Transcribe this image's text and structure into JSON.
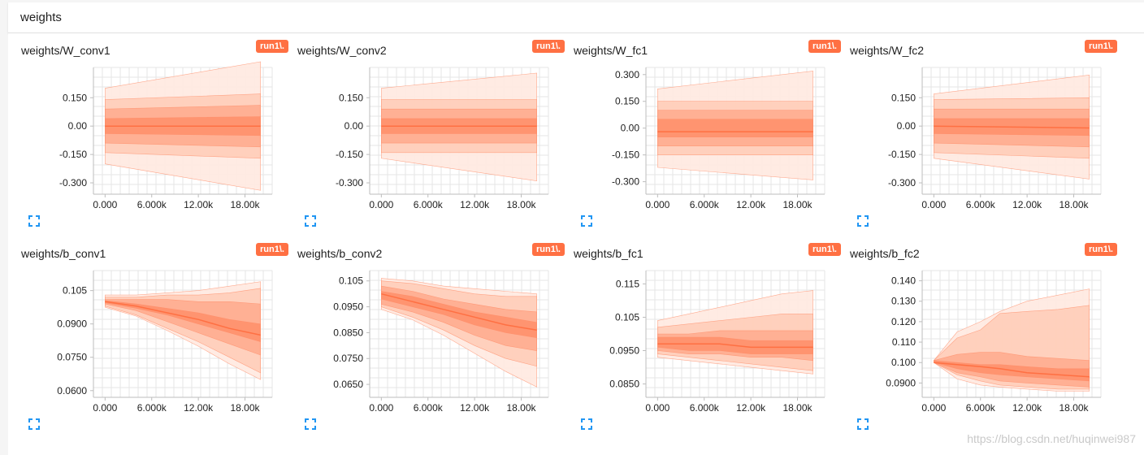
{
  "header": {
    "title": "weights"
  },
  "run_label": "run1\\.",
  "colors": {
    "accent": "#ff7043",
    "band_outer": "#ffe9e0",
    "band_2": "#ffcdb8",
    "band_3": "#ffac8f",
    "band_4": "#ff916c",
    "median": "#ff7043"
  },
  "icons": {
    "expand": "fullscreen-expand-icon"
  },
  "watermark": "https://blog.csdn.net/huqinwei987",
  "chart_data": [
    {
      "type": "area",
      "title": "weights/W_conv1",
      "x": [
        0,
        20000
      ],
      "xlim": [
        -1500,
        21500
      ],
      "x_ticks": [
        "0.000",
        "6.000k",
        "12.00k",
        "18.00k"
      ],
      "x_tick_values": [
        0,
        6000,
        12000,
        18000
      ],
      "ylim": [
        -0.36,
        0.31
      ],
      "y_ticks": [
        "0.150",
        "0.00",
        "-0.150",
        "-0.300"
      ],
      "y_tick_values": [
        0.15,
        0,
        -0.15,
        -0.3
      ],
      "bands": [
        {
          "lo": [
            -0.2,
            -0.34
          ],
          "hi": [
            0.2,
            0.34
          ]
        },
        {
          "lo": [
            -0.14,
            -0.17
          ],
          "hi": [
            0.14,
            0.17
          ]
        },
        {
          "lo": [
            -0.09,
            -0.11
          ],
          "hi": [
            0.09,
            0.11
          ]
        },
        {
          "lo": [
            -0.04,
            -0.05
          ],
          "hi": [
            0.04,
            0.05
          ]
        }
      ],
      "median": [
        0,
        0
      ]
    },
    {
      "type": "area",
      "title": "weights/W_conv2",
      "x": [
        0,
        20000
      ],
      "xlim": [
        -1500,
        21500
      ],
      "x_ticks": [
        "0.000",
        "6.000k",
        "12.00k",
        "18.00k"
      ],
      "x_tick_values": [
        0,
        6000,
        12000,
        18000
      ],
      "ylim": [
        -0.36,
        0.31
      ],
      "y_ticks": [
        "0.150",
        "0.00",
        "-0.150",
        "-0.300"
      ],
      "y_tick_values": [
        0.15,
        0,
        -0.15,
        -0.3
      ],
      "bands": [
        {
          "lo": [
            -0.17,
            -0.29
          ],
          "hi": [
            0.2,
            0.28
          ]
        },
        {
          "lo": [
            -0.14,
            -0.14
          ],
          "hi": [
            0.14,
            0.14
          ]
        },
        {
          "lo": [
            -0.09,
            -0.09
          ],
          "hi": [
            0.09,
            0.09
          ]
        },
        {
          "lo": [
            -0.04,
            -0.04
          ],
          "hi": [
            0.04,
            0.04
          ]
        }
      ],
      "median": [
        0,
        0
      ]
    },
    {
      "type": "area",
      "title": "weights/W_fc1",
      "x": [
        0,
        20000
      ],
      "xlim": [
        -1500,
        21500
      ],
      "x_ticks": [
        "0.000",
        "6.000k",
        "12.00k",
        "18.00k"
      ],
      "x_tick_values": [
        0,
        6000,
        12000,
        18000
      ],
      "ylim": [
        -0.37,
        0.34
      ],
      "y_ticks": [
        "0.300",
        "0.150",
        "0.00",
        "-0.150",
        "-0.300"
      ],
      "y_tick_values": [
        0.3,
        0.15,
        0,
        -0.15,
        -0.3
      ],
      "bands": [
        {
          "lo": [
            -0.22,
            -0.29
          ],
          "hi": [
            0.22,
            0.32
          ]
        },
        {
          "lo": [
            -0.15,
            -0.15
          ],
          "hi": [
            0.15,
            0.15
          ]
        },
        {
          "lo": [
            -0.1,
            -0.1
          ],
          "hi": [
            0.1,
            0.1
          ]
        },
        {
          "lo": [
            -0.05,
            -0.05
          ],
          "hi": [
            0.05,
            0.05
          ]
        }
      ],
      "median": [
        -0.02,
        -0.02
      ]
    },
    {
      "type": "area",
      "title": "weights/W_fc2",
      "x": [
        0,
        20000
      ],
      "xlim": [
        -1500,
        21500
      ],
      "x_ticks": [
        "0.000",
        "6.000k",
        "12.00k",
        "18.00k"
      ],
      "x_tick_values": [
        0,
        6000,
        12000,
        18000
      ],
      "ylim": [
        -0.36,
        0.31
      ],
      "y_ticks": [
        "0.150",
        "0.00",
        "-0.150",
        "-0.300"
      ],
      "y_tick_values": [
        0.15,
        0,
        -0.15,
        -0.3
      ],
      "bands": [
        {
          "lo": [
            -0.17,
            -0.28
          ],
          "hi": [
            0.17,
            0.27
          ]
        },
        {
          "lo": [
            -0.14,
            -0.17
          ],
          "hi": [
            0.14,
            0.15
          ]
        },
        {
          "lo": [
            -0.09,
            -0.11
          ],
          "hi": [
            0.09,
            0.09
          ]
        },
        {
          "lo": [
            -0.04,
            -0.05
          ],
          "hi": [
            0.04,
            0.04
          ]
        }
      ],
      "median": [
        0,
        -0.01
      ]
    },
    {
      "type": "area",
      "title": "weights/b_conv1",
      "x": [
        0,
        4000,
        8000,
        12000,
        16000,
        20000
      ],
      "xlim": [
        -1500,
        21500
      ],
      "x_ticks": [
        "0.000",
        "6.000k",
        "12.00k",
        "18.00k"
      ],
      "x_tick_values": [
        0,
        6000,
        12000,
        18000
      ],
      "ylim": [
        0.057,
        0.114
      ],
      "y_ticks": [
        "0.105",
        "0.0900",
        "0.0750",
        "0.0600"
      ],
      "y_tick_values": [
        0.105,
        0.09,
        0.075,
        0.06
      ],
      "bands": [
        {
          "lo": [
            0.0975,
            0.0935,
            0.087,
            0.08,
            0.072,
            0.065
          ],
          "hi": [
            0.103,
            0.103,
            0.104,
            0.105,
            0.107,
            0.109
          ]
        },
        {
          "lo": [
            0.098,
            0.094,
            0.088,
            0.082,
            0.075,
            0.068
          ],
          "hi": [
            0.102,
            0.102,
            0.103,
            0.103,
            0.104,
            0.106
          ]
        },
        {
          "lo": [
            0.099,
            0.096,
            0.091,
            0.086,
            0.081,
            0.076
          ],
          "hi": [
            0.101,
            0.101,
            0.101,
            0.1,
            0.1,
            0.099
          ]
        },
        {
          "lo": [
            0.0995,
            0.097,
            0.094,
            0.09,
            0.086,
            0.082
          ],
          "hi": [
            0.1005,
            0.099,
            0.097,
            0.095,
            0.092,
            0.09
          ]
        }
      ],
      "median": [
        0.1,
        0.098,
        0.095,
        0.092,
        0.088,
        0.085
      ]
    },
    {
      "type": "area",
      "title": "weights/b_conv2",
      "x": [
        0,
        4000,
        8000,
        12000,
        16000,
        20000
      ],
      "xlim": [
        -1500,
        21500
      ],
      "x_ticks": [
        "0.000",
        "6.000k",
        "12.00k",
        "18.00k"
      ],
      "x_tick_values": [
        0,
        6000,
        12000,
        18000
      ],
      "ylim": [
        0.06,
        0.109
      ],
      "y_ticks": [
        "0.105",
        "0.0950",
        "0.0850",
        "0.0750",
        "0.0650"
      ],
      "y_tick_values": [
        0.105,
        0.095,
        0.085,
        0.075,
        0.065
      ],
      "bands": [
        {
          "lo": [
            0.094,
            0.09,
            0.084,
            0.077,
            0.07,
            0.064
          ],
          "hi": [
            0.106,
            0.105,
            0.103,
            0.102,
            0.101,
            0.1
          ]
        },
        {
          "lo": [
            0.095,
            0.091,
            0.086,
            0.08,
            0.075,
            0.072
          ],
          "hi": [
            0.105,
            0.104,
            0.102,
            0.1,
            0.099,
            0.099
          ]
        },
        {
          "lo": [
            0.096,
            0.093,
            0.089,
            0.084,
            0.08,
            0.078
          ],
          "hi": [
            0.103,
            0.101,
            0.098,
            0.096,
            0.094,
            0.093
          ]
        },
        {
          "lo": [
            0.098,
            0.095,
            0.092,
            0.088,
            0.085,
            0.083
          ],
          "hi": [
            0.101,
            0.099,
            0.096,
            0.093,
            0.091,
            0.089
          ]
        }
      ],
      "median": [
        0.1,
        0.097,
        0.094,
        0.091,
        0.088,
        0.086
      ]
    },
    {
      "type": "area",
      "title": "weights/b_fc1",
      "x": [
        0,
        4000,
        8000,
        12000,
        16000,
        20000
      ],
      "xlim": [
        -1500,
        21500
      ],
      "x_ticks": [
        "0.000",
        "6.000k",
        "12.00k",
        "18.00k"
      ],
      "x_tick_values": [
        0,
        6000,
        12000,
        18000
      ],
      "ylim": [
        0.081,
        0.119
      ],
      "y_ticks": [
        "0.115",
        "0.105",
        "0.0950",
        "0.0850"
      ],
      "y_tick_values": [
        0.115,
        0.105,
        0.095,
        0.085
      ],
      "bands": [
        {
          "lo": [
            0.093,
            0.092,
            0.091,
            0.09,
            0.089,
            0.088
          ],
          "hi": [
            0.104,
            0.106,
            0.108,
            0.11,
            0.112,
            0.113
          ]
        },
        {
          "lo": [
            0.094,
            0.093,
            0.092,
            0.091,
            0.09,
            0.089
          ],
          "hi": [
            0.102,
            0.103,
            0.104,
            0.105,
            0.106,
            0.106
          ]
        },
        {
          "lo": [
            0.095,
            0.094,
            0.094,
            0.093,
            0.093,
            0.092
          ],
          "hi": [
            0.1,
            0.1,
            0.101,
            0.101,
            0.101,
            0.101
          ]
        },
        {
          "lo": [
            0.096,
            0.095,
            0.095,
            0.094,
            0.094,
            0.094
          ],
          "hi": [
            0.099,
            0.099,
            0.099,
            0.098,
            0.098,
            0.098
          ]
        }
      ],
      "median": [
        0.097,
        0.097,
        0.097,
        0.096,
        0.096,
        0.096
      ]
    },
    {
      "type": "area",
      "title": "weights/b_fc2",
      "x": [
        0,
        3000,
        6000,
        8500,
        12000,
        16000,
        20000
      ],
      "xlim": [
        -1500,
        21500
      ],
      "x_ticks": [
        "0.000",
        "6.000k",
        "12.00k",
        "18.00k"
      ],
      "x_tick_values": [
        0,
        6000,
        12000,
        18000
      ],
      "ylim": [
        0.083,
        0.145
      ],
      "y_ticks": [
        "0.140",
        "0.130",
        "0.120",
        "0.110",
        "0.100",
        "0.0900"
      ],
      "y_tick_values": [
        0.14,
        0.13,
        0.12,
        0.11,
        0.1,
        0.09
      ],
      "bands": [
        {
          "lo": [
            0.1,
            0.092,
            0.089,
            0.088,
            0.087,
            0.086,
            0.086
          ],
          "hi": [
            0.101,
            0.115,
            0.12,
            0.125,
            0.13,
            0.133,
            0.136
          ]
        },
        {
          "lo": [
            0.1,
            0.094,
            0.091,
            0.089,
            0.088,
            0.087,
            0.087
          ],
          "hi": [
            0.101,
            0.112,
            0.116,
            0.124,
            0.125,
            0.126,
            0.128
          ]
        },
        {
          "lo": [
            0.1,
            0.095,
            0.093,
            0.091,
            0.09,
            0.089,
            0.088
          ],
          "hi": [
            0.101,
            0.104,
            0.105,
            0.105,
            0.103,
            0.102,
            0.101
          ]
        },
        {
          "lo": [
            0.1,
            0.097,
            0.095,
            0.094,
            0.093,
            0.092,
            0.091
          ],
          "hi": [
            0.101,
            0.1,
            0.099,
            0.099,
            0.098,
            0.097,
            0.097
          ]
        }
      ],
      "median": [
        0.1,
        0.099,
        0.098,
        0.097,
        0.095,
        0.094,
        0.093
      ]
    }
  ]
}
